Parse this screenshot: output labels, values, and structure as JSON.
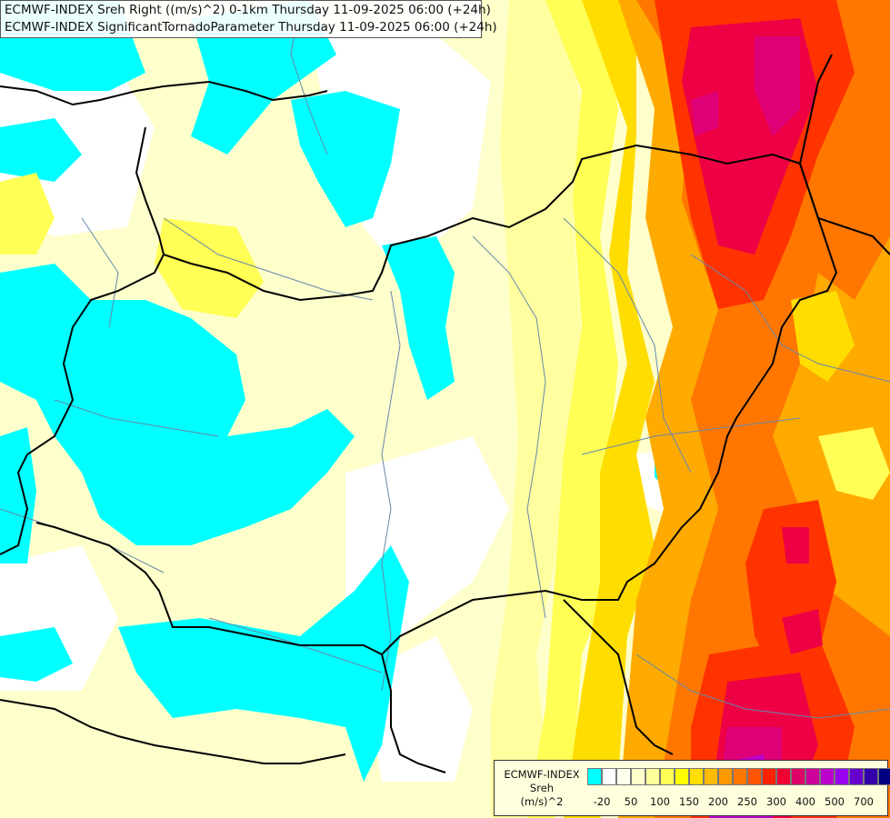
{
  "header": {
    "line1": "ECMWF-INDEX Sreh Right ((m/s)^2) 0-1km Thursday 11-09-2025 06:00 (+24h)",
    "line2": "ECMWF-INDEX SignificantTornadoParameter Thursday 11-09-2025 06:00 (+24h)"
  },
  "legend": {
    "title": "ECMWF-INDEX",
    "variable": "Sreh",
    "unit": "(m/s)^2",
    "colors": [
      "#00ffff",
      "#ffffff",
      "#ffffee",
      "#ffffcc",
      "#ffff99",
      "#ffff55",
      "#ffff00",
      "#ffdd00",
      "#ffbb00",
      "#ff9900",
      "#ff7700",
      "#ff5500",
      "#ff2200",
      "#ee0033",
      "#dd0066",
      "#cc0099",
      "#bb00cc",
      "#9900ee",
      "#6600cc",
      "#3300aa",
      "#000080"
    ],
    "tick_labels": [
      {
        "label": "-20",
        "index": 1
      },
      {
        "label": "50",
        "index": 3
      },
      {
        "label": "100",
        "index": 5
      },
      {
        "label": "150",
        "index": 7
      },
      {
        "label": "200",
        "index": 9
      },
      {
        "label": "250",
        "index": 11
      },
      {
        "label": "300",
        "index": 13
      },
      {
        "label": "400",
        "index": 15
      },
      {
        "label": "500",
        "index": 17
      },
      {
        "label": "700",
        "index": 19
      }
    ]
  },
  "map": {
    "fill_colors": {
      "cyan": "#00ffff",
      "white": "#ffffff",
      "pale": "#ffffcc",
      "paleyellow": "#ffffa0",
      "yellow": "#ffff55",
      "gold": "#ffdd00",
      "orange": "#ffaa00",
      "darkorange": "#ff7700",
      "red": "#ff3300",
      "crimson": "#ee0044",
      "magenta": "#dd0077",
      "purple": "#bb00cc",
      "border": "#000000",
      "river": "#6688aa"
    }
  }
}
